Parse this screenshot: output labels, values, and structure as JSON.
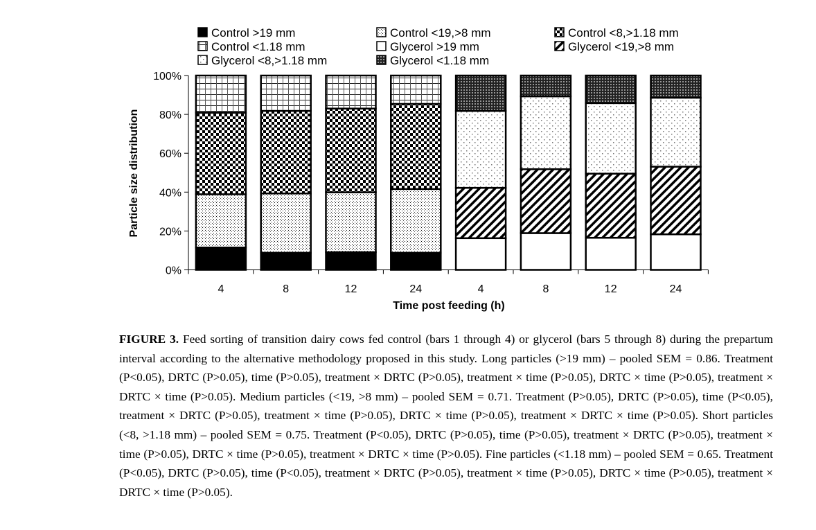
{
  "chart_data": {
    "type": "bar",
    "stacked": true,
    "title": "",
    "xlabel": "Time post feeding (h)",
    "ylabel": "Particle size distribution",
    "ylim": [
      0,
      100
    ],
    "yticks": [
      "0%",
      "20%",
      "40%",
      "60%",
      "80%",
      "100%"
    ],
    "categories": [
      "4",
      "8",
      "12",
      "24",
      "4",
      "8",
      "12",
      "24"
    ],
    "legend_position": "top",
    "series": [
      {
        "name": "Control >19 mm",
        "pattern": "solid-black",
        "values": [
          11.5,
          8.8,
          9.1,
          8.8,
          0,
          0,
          0,
          0
        ]
      },
      {
        "name": "Control <19,>8 mm",
        "pattern": "fine-dots",
        "values": [
          27.4,
          30.5,
          30.8,
          32.8,
          0,
          0,
          0,
          0
        ]
      },
      {
        "name": "Control <8,>1.18 mm",
        "pattern": "checker",
        "values": [
          42.0,
          42.5,
          43.1,
          43.8,
          0,
          0,
          0,
          0
        ]
      },
      {
        "name": "Control <1.18 mm",
        "pattern": "grid",
        "values": [
          19.1,
          18.2,
          17.0,
          14.6,
          0,
          0,
          0,
          0
        ]
      },
      {
        "name": "Glycerol >19 mm",
        "pattern": "white",
        "values": [
          0,
          0,
          0,
          0,
          16.3,
          18.9,
          16.5,
          18.3
        ]
      },
      {
        "name": "Glycerol <19,>8 mm",
        "pattern": "diagonal",
        "values": [
          0,
          0,
          0,
          0,
          25.9,
          32.9,
          33.0,
          34.8
        ]
      },
      {
        "name": "Glycerol <8,>1.18 mm",
        "pattern": "sparse-dots",
        "values": [
          0,
          0,
          0,
          0,
          39.6,
          37.5,
          36.3,
          35.5
        ]
      },
      {
        "name": "Glycerol <1.18 mm",
        "pattern": "dense-checker",
        "values": [
          0,
          0,
          0,
          0,
          18.2,
          10.7,
          14.2,
          11.4
        ]
      }
    ]
  },
  "caption": {
    "label": "FIGURE 3.",
    "text": " Feed sorting of transition dairy cows fed control (bars 1 through 4) or glycerol (bars 5 through 8) during the prepartum interval according to the alternative methodology proposed in this study. Long particles (>19 mm) – pooled SEM = 0.86. Treatment (P<0.05), DRTC (P>0.05), time (P>0.05), treatment × DRTC (P>0.05), treatment × time (P>0.05), DRTC × time (P>0.05), treatment × DRTC × time (P>0.05). Medium particles (<19, >8 mm) – pooled SEM = 0.71. Treatment (P>0.05), DRTC (P>0.05), time (P<0.05), treatment × DRTC (P>0.05), treatment × time (P>0.05), DRTC × time (P>0.05), treatment × DRTC × time (P>0.05). Short particles (<8, >1.18 mm) – pooled SEM = 0.75. Treatment (P<0.05), DRTC (P>0.05), time (P>0.05), treatment × DRTC (P>0.05), treatment × time (P>0.05), DRTC × time (P>0.05), treatment × DRTC × time (P>0.05). Fine particles (<1.18 mm) – pooled SEM = 0.65. Treatment (P<0.05), DRTC (P>0.05), time (P<0.05), treatment × DRTC (P>0.05), treatment × time (P>0.05), DRTC × time (P>0.05), treatment × DRTC × time (P>0.05)."
  }
}
